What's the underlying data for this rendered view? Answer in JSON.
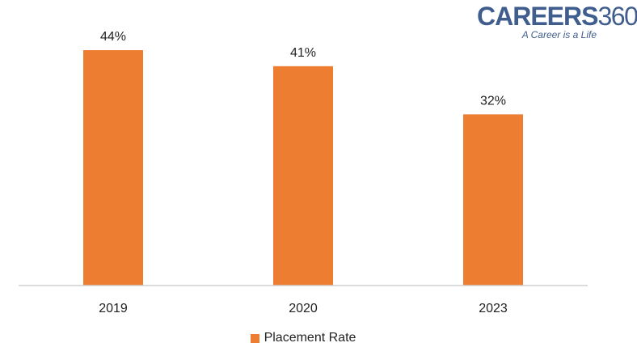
{
  "logo": {
    "brand": "CAREERS",
    "number": "360",
    "tagline": "A Career is a Life"
  },
  "chart_data": {
    "type": "bar",
    "categories": [
      "2019",
      "2020",
      "2023"
    ],
    "series": [
      {
        "name": "Placement Rate",
        "values": [
          44,
          41,
          32
        ],
        "labels": [
          "44%",
          "41%",
          "32%"
        ]
      }
    ],
    "ylim": [
      0,
      44
    ],
    "grid": false,
    "legend": "bottom-center",
    "bar_color": "#ed7d31"
  }
}
